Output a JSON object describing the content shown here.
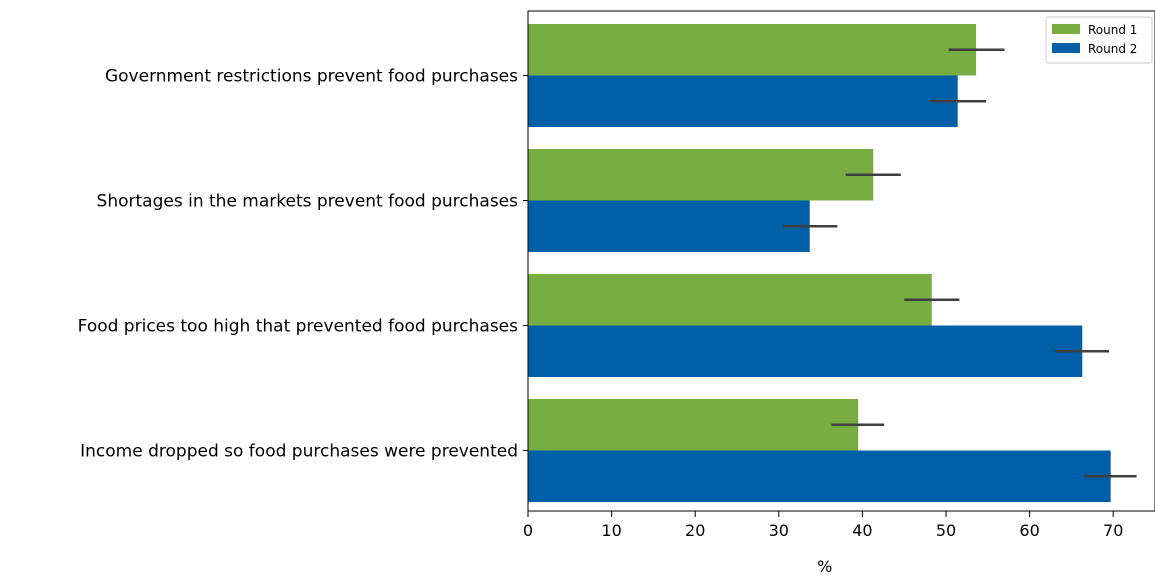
{
  "chart_data": {
    "type": "bar",
    "orientation": "horizontal",
    "categories": [
      "Government restrictions prevent food purchases",
      "Shortages in the markets prevent food purchases",
      "Food prices too high that prevented food purchases",
      "Income dropped so food purchases were prevented"
    ],
    "series": [
      {
        "name": "Round 1",
        "color": "#77ac41",
        "values": [
          53.6,
          41.3,
          48.3,
          39.5
        ],
        "error_low": [
          50.3,
          38.0,
          45.0,
          36.3
        ],
        "error_high": [
          57.0,
          44.6,
          51.6,
          42.6
        ]
      },
      {
        "name": "Round 2",
        "color": "#0060a7",
        "values": [
          51.4,
          33.7,
          66.3,
          69.7
        ],
        "error_low": [
          48.1,
          30.5,
          63.0,
          66.5
        ],
        "error_high": [
          54.8,
          37.0,
          69.5,
          72.8
        ]
      }
    ],
    "xlabel": "%",
    "ylabel": "",
    "xlim": [
      0,
      75
    ],
    "xticks": [
      0,
      10,
      20,
      30,
      40,
      50,
      60,
      70
    ],
    "grid": false,
    "legend_position": "top-right",
    "error_bar_color": "#3f3f3f"
  }
}
